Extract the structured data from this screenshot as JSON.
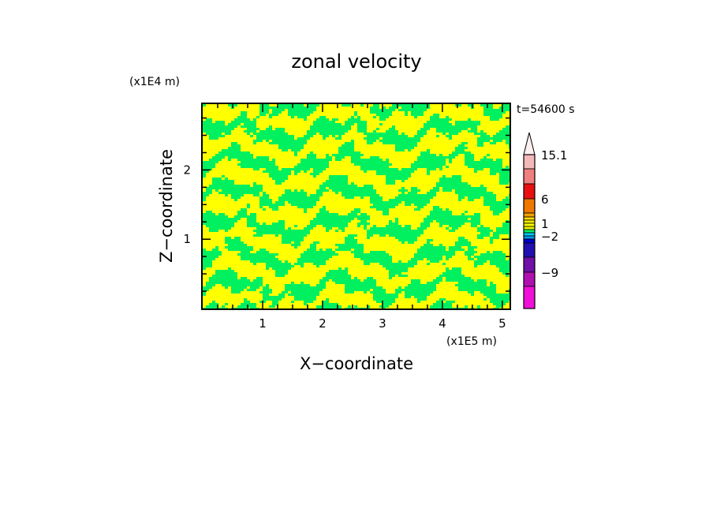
{
  "chart_data": {
    "type": "heatmap",
    "title": "zonal velocity",
    "xlabel": "X−coordinate",
    "ylabel": "Z−coordinate",
    "x_scale_label": "(x1E5 m)",
    "y_scale_label": "(x1E4 m)",
    "time_label": "t=54600 s",
    "x_ticks": [
      1,
      2,
      3,
      4,
      5
    ],
    "y_ticks": [
      1,
      2
    ],
    "xlim": [
      0,
      5.12
    ],
    "ylim": [
      0,
      2.95
    ],
    "colors": {
      "field_low": "#00f060",
      "field_high": "#ffff00",
      "frame": "#000000"
    },
    "colorbar": {
      "labels": [
        "15.1",
        "6",
        "1",
        "−2",
        "−9"
      ],
      "levels": [
        "15.1",
        "14.0",
        "12.0",
        "10.0",
        "8.0",
        "6.0",
        "4.0",
        "2.0",
        "1.5",
        "1.0",
        "0.5",
        "0.0",
        "-0.5",
        "-1.0",
        "-2.0",
        "-4.0",
        "-6.0",
        "-9.0",
        "-12.0"
      ],
      "bins": [
        "#f4b8b8",
        "#f08080",
        "#e83030",
        "#e81010",
        "#f07800",
        "#f05800",
        "#f0a000",
        "#ffd800",
        "#f0e800",
        "#ffff00",
        "#e8f000",
        "#00f060",
        "#00c8f0",
        "#0098f0",
        "#0000c8",
        "#2010b0",
        "#7010a8",
        "#b010b0",
        "#e010c8",
        "#f010d8"
      ],
      "max_arrow_color": "#fff0f0"
    }
  }
}
